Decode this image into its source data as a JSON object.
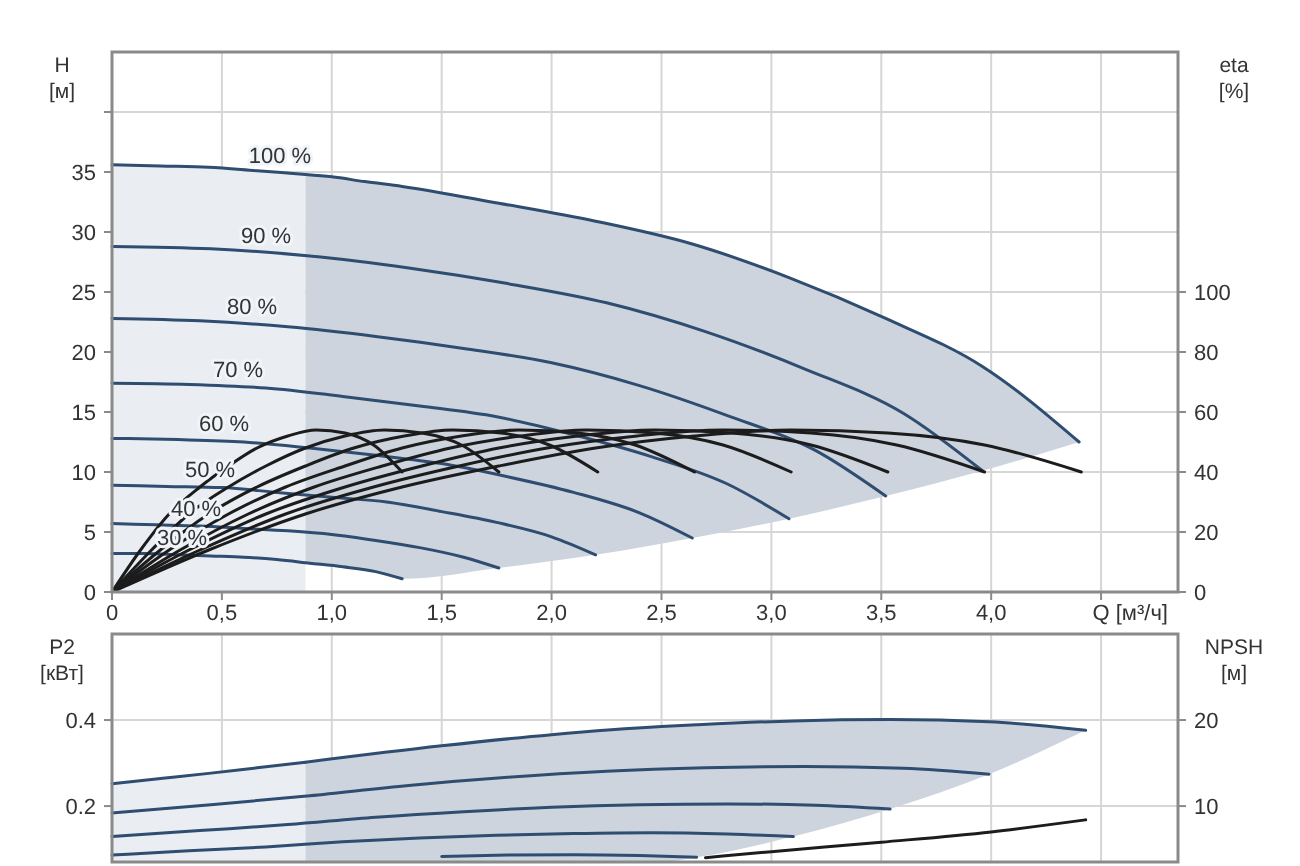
{
  "chart_data": [
    {
      "type": "line",
      "xlabel": "Q [м³/ч]",
      "ylabel": "H [м]",
      "y2label": "eta [%]",
      "xlim": [
        0,
        4.85
      ],
      "xticks": [
        0,
        {
          "value": 0.5,
          "label": "0,5"
        },
        {
          "value": 1,
          "label": "1,0"
        },
        {
          "value": 1.5,
          "label": "1,5"
        },
        {
          "value": 2,
          "label": "2,0"
        },
        {
          "value": 2.5,
          "label": "2,5"
        },
        {
          "value": 3,
          "label": "3,0"
        },
        {
          "value": 3.5,
          "label": "3,5"
        },
        {
          "value": 4,
          "label": "4,0"
        },
        {
          "value": 4.5,
          "label": null
        }
      ],
      "ylim": [
        0,
        45
      ],
      "yticks": [
        0,
        5,
        10,
        15,
        20,
        25,
        30,
        35,
        {
          "value": 40,
          "label": null
        }
      ],
      "y2lim": [
        0,
        180
      ],
      "y2ticks": [
        0,
        20,
        40,
        60,
        80,
        100
      ],
      "grid": true,
      "series": [
        {
          "name": "100 %",
          "color": "#2f4d70",
          "x": [
            0,
            0.22,
            0.44,
            0.66,
            0.88
          ],
          "values": [
            35.6,
            35.5,
            35.4,
            35.1,
            34.8
          ],
          "lower": [
            0,
            0,
            0,
            0,
            0
          ],
          "upper": [
            35.6,
            35.5,
            35.4,
            35.1,
            34.8
          ]
        },
        {
          "color": "#2f4d70",
          "x": [
            0.88,
            1.0,
            1.15,
            1.32,
            1.76,
            2.2,
            2.64,
            3.08,
            3.52,
            3.96,
            4.4
          ],
          "values": [
            34.8,
            34.6,
            34.2,
            33.8,
            32.4,
            30.9,
            29.0,
            26.2,
            22.8,
            18.8,
            12.5
          ],
          "lower": [
            2.5,
            2.3,
            1.9,
            1.1,
            2.0,
            3.1,
            4.5,
            6.1,
            8.0,
            10.1,
            12.5
          ],
          "upper": [
            34.8,
            34.6,
            34.2,
            33.8,
            32.4,
            30.9,
            29.0,
            26.2,
            22.8,
            18.8,
            12.5
          ]
        },
        {
          "name": "90 %",
          "color": "#2f4d70",
          "x": [
            0,
            0.45,
            0.9,
            1.35,
            1.8,
            2.25,
            2.7,
            3.15,
            3.6,
            3.96
          ],
          "values": [
            28.8,
            28.6,
            28.0,
            27.0,
            25.7,
            24.1,
            21.7,
            18.6,
            14.9,
            10.1
          ]
        },
        {
          "name": "80 %",
          "color": "#2f4d70",
          "x": [
            0,
            0.4,
            0.8,
            1.2,
            1.6,
            2.0,
            2.4,
            2.8,
            3.2,
            3.52
          ],
          "values": [
            22.8,
            22.6,
            22.1,
            21.3,
            20.3,
            19.1,
            17.2,
            14.7,
            11.8,
            8.0
          ]
        },
        {
          "name": "70 %",
          "color": "#2f4d70",
          "x": [
            0,
            0.35,
            0.7,
            1.05,
            1.4,
            1.75,
            2.1,
            2.45,
            2.8,
            3.08
          ],
          "values": [
            17.4,
            17.3,
            17.0,
            16.3,
            15.5,
            14.6,
            13.1,
            11.3,
            9.0,
            6.1
          ]
        },
        {
          "name": "60 %",
          "color": "#2f4d70",
          "x": [
            0,
            0.3,
            0.6,
            0.9,
            1.2,
            1.5,
            1.8,
            2.1,
            2.4,
            2.64
          ],
          "values": [
            12.8,
            12.7,
            12.5,
            12.0,
            11.4,
            10.7,
            9.6,
            8.3,
            6.6,
            4.5
          ]
        },
        {
          "name": "50 %",
          "color": "#2f4d70",
          "x": [
            0,
            0.25,
            0.5,
            0.75,
            1.0,
            1.25,
            1.5,
            1.75,
            2.0,
            2.2
          ],
          "values": [
            8.9,
            8.8,
            8.7,
            8.3,
            7.9,
            7.5,
            6.7,
            5.8,
            4.6,
            3.1
          ]
        },
        {
          "name": "40 %",
          "color": "#2f4d70",
          "x": [
            0,
            0.2,
            0.4,
            0.6,
            0.8,
            1.0,
            1.2,
            1.4,
            1.6,
            1.76
          ],
          "values": [
            5.7,
            5.6,
            5.5,
            5.3,
            5.1,
            4.8,
            4.3,
            3.7,
            2.9,
            2.0
          ]
        },
        {
          "name": "30 %",
          "color": "#2f4d70",
          "x": [
            0,
            0.15,
            0.3,
            0.45,
            0.6,
            0.75,
            0.9,
            1.05,
            1.2,
            1.32
          ],
          "values": [
            3.2,
            3.2,
            3.1,
            3.0,
            2.9,
            2.7,
            2.4,
            2.1,
            1.7,
            1.1
          ]
        },
        {
          "axis": "y2",
          "color": "#1c1c1c",
          "x": [
            0,
            0.44,
            0.88,
            1.32,
            1.76,
            2.2,
            2.65,
            3.09,
            3.53,
            3.97,
            4.41
          ],
          "values": [
            0,
            14,
            26,
            35,
            42,
            48,
            52,
            54,
            53,
            49,
            40
          ]
        },
        {
          "axis": "y2",
          "color": "#1c1c1c",
          "x": [
            0,
            0.4,
            0.79,
            1.19,
            1.58,
            1.98,
            2.39,
            2.78,
            3.18,
            3.57,
            3.97
          ],
          "values": [
            0,
            14,
            26,
            35,
            42,
            48,
            52,
            54,
            53,
            49,
            40
          ]
        },
        {
          "axis": "y2",
          "color": "#1c1c1c",
          "x": [
            0,
            0.35,
            0.7,
            1.06,
            1.41,
            1.76,
            2.12,
            2.47,
            2.82,
            3.18,
            3.53
          ],
          "values": [
            0,
            14,
            26,
            35,
            42,
            48,
            52,
            54,
            53,
            49,
            40
          ]
        },
        {
          "axis": "y2",
          "color": "#1c1c1c",
          "x": [
            0,
            0.31,
            0.62,
            0.92,
            1.23,
            1.54,
            1.86,
            2.16,
            2.47,
            2.78,
            3.09
          ],
          "values": [
            0,
            14,
            26,
            35,
            42,
            48,
            52,
            54,
            53,
            49,
            40
          ]
        },
        {
          "axis": "y2",
          "color": "#1c1c1c",
          "x": [
            0,
            0.26,
            0.53,
            0.79,
            1.06,
            1.32,
            1.59,
            1.85,
            2.12,
            2.38,
            2.65
          ],
          "values": [
            0,
            14,
            26,
            35,
            42,
            48,
            52,
            54,
            53,
            49,
            40
          ]
        },
        {
          "axis": "y2",
          "color": "#1c1c1c",
          "x": [
            0,
            0.22,
            0.44,
            0.66,
            0.88,
            1.1,
            1.33,
            1.55,
            1.77,
            1.99,
            2.21
          ],
          "values": [
            0,
            14,
            26,
            35,
            42,
            48,
            52,
            54,
            53,
            49,
            40
          ]
        },
        {
          "axis": "y2",
          "color": "#1c1c1c",
          "x": [
            0,
            0.18,
            0.35,
            0.53,
            0.7,
            0.88,
            1.06,
            1.24,
            1.41,
            1.59,
            1.76
          ],
          "values": [
            0,
            14,
            26,
            35,
            42,
            48,
            52,
            54,
            53,
            49,
            40
          ]
        },
        {
          "axis": "y2",
          "color": "#1c1c1c",
          "x": [
            0,
            0.13,
            0.26,
            0.4,
            0.53,
            0.66,
            0.8,
            0.93,
            1.06,
            1.19,
            1.32
          ],
          "values": [
            0,
            14,
            26,
            35,
            42,
            48,
            52,
            54,
            53,
            49,
            40
          ]
        }
      ]
    },
    {
      "type": "line",
      "ylabel": "P2 [кВт]",
      "y2label": "NPSH [м]",
      "xlim": [
        0,
        4.85
      ],
      "xticks": [
        {
          "value": 0,
          "label": null
        },
        {
          "value": 0.5,
          "label": null
        },
        {
          "value": 1,
          "label": null
        },
        {
          "value": 1.5,
          "label": null
        },
        {
          "value": 2,
          "label": null
        },
        {
          "value": 2.5,
          "label": null
        },
        {
          "value": 3,
          "label": null
        },
        {
          "value": 3.5,
          "label": null
        },
        {
          "value": 4,
          "label": null
        },
        {
          "value": 4.5,
          "label": null
        }
      ],
      "ylim": [
        0.07,
        0.6
      ],
      "yticks": [
        0.2,
        0.4
      ],
      "y2lim": [
        3.5,
        30
      ],
      "y2ticks": [
        10,
        20
      ],
      "grid": true,
      "tick_labels": "y",
      "series": [
        {
          "color": "#2f4d70",
          "x": [
            0,
            0.22,
            0.44,
            0.66,
            0.88
          ],
          "values": [
            0.252,
            0.264,
            0.276,
            0.289,
            0.302
          ],
          "lower": [
            0.07,
            0.07,
            0.07,
            0.07,
            0.07
          ],
          "upper": [
            0.252,
            0.264,
            0.276,
            0.289,
            0.302
          ]
        },
        {
          "color": "#2f4d70",
          "x": [
            0.88,
            1.5,
            2.0,
            2.5,
            2.66,
            3.1,
            3.54,
            3.99,
            4.43
          ],
          "values": [
            0.302,
            0.34,
            0.366,
            0.385,
            0.389,
            0.398,
            0.401,
            0.396,
            0.376
          ],
          "lower": [
            0.07,
            0.07,
            0.07,
            0.07,
            0.081,
            0.129,
            0.193,
            0.274,
            0.376
          ],
          "upper": [
            0.302,
            0.34,
            0.366,
            0.385,
            0.389,
            0.398,
            0.401,
            0.396,
            0.376
          ]
        },
        {
          "color": "#2f4d70",
          "x": [
            0,
            0.45,
            0.9,
            1.35,
            1.8,
            2.25,
            2.7,
            3.15,
            3.6,
            3.99
          ],
          "values": [
            0.184,
            0.203,
            0.224,
            0.248,
            0.267,
            0.281,
            0.289,
            0.292,
            0.288,
            0.274
          ]
        },
        {
          "color": "#2f4d70",
          "x": [
            0,
            0.4,
            0.8,
            1.2,
            1.6,
            2.0,
            2.4,
            2.8,
            3.2,
            3.54
          ],
          "values": [
            0.129,
            0.143,
            0.157,
            0.174,
            0.187,
            0.197,
            0.203,
            0.205,
            0.202,
            0.193
          ]
        },
        {
          "color": "#2f4d70",
          "x": [
            0,
            0.35,
            0.7,
            1.05,
            1.4,
            1.75,
            2.1,
            2.45,
            2.8,
            3.1
          ],
          "values": [
            0.086,
            0.096,
            0.105,
            0.117,
            0.126,
            0.132,
            0.136,
            0.138,
            0.135,
            0.129
          ]
        },
        {
          "color": "#2f4d70",
          "x": [
            1.5,
            1.8,
            2.1,
            2.4,
            2.66
          ],
          "values": [
            0.083,
            0.086,
            0.087,
            0.085,
            0.081
          ]
        },
        {
          "axis": "y2",
          "color": "#1c1c1c",
          "x": [
            2.7,
            3.0,
            3.5,
            4.0,
            4.43
          ],
          "values": [
            4.0,
            4.7,
            5.8,
            7.0,
            8.4
          ]
        }
      ]
    }
  ]
}
